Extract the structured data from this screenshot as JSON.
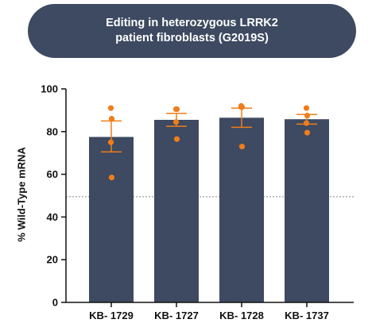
{
  "title_lines": [
    "Editing in heterozygous LRRK2",
    "patient fibroblasts (G2019S)"
  ],
  "colors": {
    "banner": "#3d4a61",
    "bar": "#3d4a61",
    "point": "#f07d1a",
    "error_bar": "#f07d1a",
    "reference_line": "#888888",
    "axis": "#111111"
  },
  "chart_data": {
    "type": "bar",
    "title": "Editing in heterozygous LRRK2 patient fibroblasts (G2019S)",
    "xlabel": "",
    "ylabel": "% Wild-Type mRNA",
    "ylim": [
      0,
      100
    ],
    "yticks": [
      0,
      20,
      40,
      60,
      80,
      100
    ],
    "grid": false,
    "reference_line": 49.5,
    "categories": [
      "KB- 1729",
      "KB- 1727",
      "KB- 1728",
      "KB- 1737"
    ],
    "values": [
      77.5,
      85.5,
      86.5,
      85.8
    ],
    "error_upper": [
      85,
      88.5,
      91,
      88
    ],
    "error_lower": [
      70.5,
      82.5,
      82,
      83.5
    ],
    "points": [
      [
        91,
        86,
        75,
        58.5
      ],
      [
        90.5,
        90.5,
        84.5,
        76.5
      ],
      [
        92,
        91.5,
        91.5,
        73
      ],
      [
        91,
        87.5,
        84,
        79.5
      ]
    ]
  }
}
